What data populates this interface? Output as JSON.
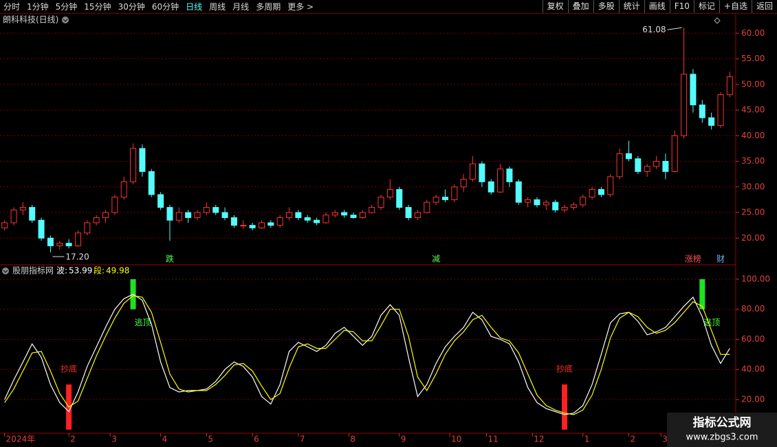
{
  "toolbar": {
    "periods": [
      "分时",
      "1分钟",
      "5分钟",
      "15分钟",
      "30分钟",
      "60分钟",
      "日线",
      "周线",
      "月线",
      "多周期",
      "更多 >"
    ],
    "active": 6,
    "buttons": [
      "复权",
      "叠加",
      "多股",
      "统计",
      "画线",
      "F10",
      "标记",
      "+自选",
      "返回"
    ]
  },
  "chart_data": [
    {
      "type": "candlestick",
      "title": "朗科科技(日线)",
      "up_color": "#ff3232",
      "down_color": "#54fcfc",
      "grid": true,
      "xlim": [
        -0.5,
        79.5
      ],
      "ylim": [
        14.8,
        63.8
      ],
      "yticks": [
        {
          "value": 20,
          "label": "20.00"
        },
        {
          "value": 25,
          "label": "25.00"
        },
        {
          "value": 30,
          "label": "30.00"
        },
        {
          "value": 35,
          "label": "35.00"
        },
        {
          "value": 40,
          "label": "40.00"
        },
        {
          "value": 45,
          "label": "45.00"
        },
        {
          "value": 50,
          "label": "50.00"
        },
        {
          "value": 55,
          "label": "55.00"
        },
        {
          "value": 60,
          "label": "60.00"
        }
      ],
      "open": [
        22.0,
        23.0,
        25.5,
        26.0,
        23.5,
        20.0,
        18.5,
        19.0,
        18.5,
        21.0,
        23.0,
        24.0,
        25.0,
        28.0,
        31.0,
        37.5,
        33.0,
        28.5,
        26.0,
        23.5,
        25.0,
        24.0,
        25.0,
        26.0,
        25.0,
        24.0,
        22.5,
        22.5,
        22.0,
        23.0,
        22.5,
        24.0,
        25.0,
        24.0,
        23.5,
        23.0,
        24.5,
        25.0,
        24.5,
        24.0,
        25.0,
        26.0,
        28.0,
        29.5,
        26.0,
        24.0,
        25.0,
        27.0,
        28.0,
        27.5,
        30.0,
        31.5,
        34.5,
        31.0,
        29.0,
        33.5,
        31.0,
        27.0,
        27.5,
        26.5,
        27.0,
        25.5,
        26.0,
        26.5,
        28.0,
        29.5,
        28.5,
        32.0,
        36.5,
        35.5,
        33.0,
        34.0,
        35.0,
        33.0,
        40.0,
        52.0,
        46.0,
        43.5,
        42.0,
        48.0
      ],
      "high": [
        23.5,
        26.0,
        27.0,
        26.5,
        24.0,
        20.5,
        19.5,
        19.8,
        21.5,
        23.5,
        24.5,
        25.5,
        28.5,
        32.0,
        38.5,
        38.3,
        33.5,
        29.0,
        26.5,
        26.0,
        25.5,
        25.5,
        27.0,
        26.5,
        26.0,
        24.5,
        23.5,
        23.0,
        23.5,
        23.5,
        24.5,
        26.0,
        25.5,
        24.5,
        24.0,
        25.0,
        25.5,
        25.5,
        25.0,
        25.5,
        26.5,
        28.5,
        31.5,
        30.0,
        26.5,
        25.5,
        27.5,
        28.5,
        29.5,
        30.5,
        32.5,
        36.0,
        35.0,
        31.5,
        34.5,
        34.0,
        31.5,
        28.0,
        28.0,
        27.5,
        27.5,
        26.5,
        27.0,
        28.5,
        30.0,
        30.0,
        32.5,
        37.5,
        39.0,
        36.0,
        34.5,
        36.0,
        36.5,
        41.0,
        61.08,
        53.0,
        47.0,
        44.5,
        48.5,
        52.5
      ],
      "low": [
        21.5,
        22.5,
        24.5,
        23.0,
        19.5,
        17.2,
        17.8,
        18.0,
        18.3,
        20.5,
        22.5,
        23.0,
        24.5,
        27.5,
        30.5,
        32.0,
        28.0,
        25.5,
        19.5,
        23.0,
        23.0,
        23.5,
        24.5,
        24.5,
        23.5,
        22.0,
        21.8,
        21.5,
        21.8,
        22.0,
        22.0,
        23.5,
        23.5,
        23.0,
        22.5,
        22.8,
        24.0,
        24.0,
        23.8,
        23.8,
        24.8,
        25.5,
        27.5,
        25.5,
        23.5,
        23.5,
        24.8,
        26.5,
        27.0,
        27.0,
        29.0,
        31.0,
        30.0,
        28.5,
        28.8,
        30.0,
        26.5,
        26.0,
        26.0,
        25.5,
        25.0,
        25.0,
        25.5,
        26.0,
        27.5,
        28.0,
        28.0,
        31.5,
        35.0,
        32.5,
        32.0,
        33.5,
        31.5,
        32.8,
        39.5,
        44.5,
        42.5,
        41.2,
        41.5,
        47.5
      ],
      "close": [
        23.0,
        25.5,
        26.0,
        23.5,
        20.0,
        18.5,
        19.0,
        18.5,
        21.0,
        23.0,
        24.0,
        25.0,
        28.0,
        31.0,
        37.5,
        33.0,
        28.5,
        26.0,
        23.5,
        25.0,
        24.0,
        25.0,
        26.0,
        25.0,
        24.0,
        22.5,
        22.5,
        22.0,
        23.0,
        22.5,
        24.0,
        25.0,
        24.0,
        23.5,
        23.0,
        24.5,
        25.0,
        24.5,
        24.0,
        25.0,
        26.0,
        28.0,
        29.5,
        26.0,
        24.0,
        25.0,
        27.0,
        28.0,
        27.5,
        30.0,
        31.5,
        34.5,
        31.0,
        29.0,
        33.5,
        31.0,
        27.0,
        27.5,
        26.5,
        27.0,
        25.5,
        26.0,
        26.5,
        28.0,
        29.5,
        28.5,
        32.0,
        36.5,
        35.5,
        33.0,
        34.0,
        35.0,
        33.0,
        40.0,
        52.0,
        46.0,
        43.5,
        42.0,
        48.0,
        51.5
      ],
      "annotations": [
        {
          "text": "61.08",
          "index": 74,
          "value": 61.08,
          "side": "left"
        },
        {
          "text": "17.20",
          "index": 5,
          "value": 17.2,
          "side": "right"
        }
      ],
      "events": [
        {
          "label": "跌",
          "index": 18,
          "color": "#54fc54"
        },
        {
          "label": "减",
          "index": 47,
          "color": "#54fc54"
        },
        {
          "label": "涨榜",
          "index": 75,
          "color": "#ff5050"
        },
        {
          "label": "财",
          "index": 78,
          "color": "#6ab4ff"
        }
      ]
    },
    {
      "type": "line",
      "title": "股朋指标网",
      "grid": true,
      "xlim": [
        -0.5,
        79.5
      ],
      "ylim": [
        -2.4,
        108.2
      ],
      "yticks": [
        {
          "value": 20,
          "label": "20.00"
        },
        {
          "value": 40,
          "label": "40.00"
        },
        {
          "value": 60,
          "label": "60.00"
        },
        {
          "value": 80,
          "label": "80.00"
        },
        {
          "value": 100,
          "label": "100.00"
        }
      ],
      "xticks": [
        {
          "value": 0,
          "label": "2024年"
        },
        {
          "value": 7,
          "label": "2"
        },
        {
          "value": 11.5,
          "label": "3"
        },
        {
          "value": 17,
          "label": "4"
        },
        {
          "value": 22,
          "label": "5"
        },
        {
          "value": 27,
          "label": "6"
        },
        {
          "value": 32,
          "label": "7"
        },
        {
          "value": 37.5,
          "label": "8"
        },
        {
          "value": 43,
          "label": "9"
        },
        {
          "value": 48.5,
          "label": "10"
        },
        {
          "value": 52.5,
          "label": "11"
        },
        {
          "value": 57.5,
          "label": "12"
        },
        {
          "value": 63,
          "label": "1"
        },
        {
          "value": 68,
          "label": "2"
        },
        {
          "value": 71.5,
          "label": "3"
        }
      ],
      "series": [
        {
          "name": "波:",
          "color": "#ffffff",
          "values": [
            20,
            33,
            45,
            57,
            48,
            30,
            18,
            12,
            25,
            42,
            55,
            68,
            80,
            87,
            90,
            86,
            70,
            45,
            28,
            25,
            26,
            26,
            27,
            32,
            40,
            45,
            42,
            35,
            22,
            17,
            30,
            52,
            58,
            55,
            52,
            56,
            64,
            68,
            62,
            56,
            62,
            76,
            83,
            76,
            48,
            22,
            30,
            44,
            55,
            62,
            68,
            78,
            73,
            62,
            60,
            57,
            45,
            28,
            18,
            14,
            12,
            10,
            11,
            16,
            30,
            50,
            71,
            77,
            78,
            72,
            63,
            65,
            68,
            75,
            82,
            88,
            75,
            56,
            44,
            53.99
          ]
        },
        {
          "name": "段:",
          "color": "#ffff00",
          "values": [
            18,
            27,
            39,
            51,
            52,
            39,
            24,
            15,
            19,
            34,
            49,
            62,
            74,
            84,
            89,
            88,
            78,
            58,
            37,
            27,
            25,
            26,
            26,
            30,
            36,
            43,
            44,
            39,
            29,
            20,
            24,
            41,
            55,
            57,
            54,
            54,
            60,
            66,
            65,
            59,
            59,
            69,
            80,
            80,
            62,
            35,
            26,
            37,
            50,
            59,
            65,
            73,
            76,
            68,
            61,
            59,
            51,
            37,
            23,
            16,
            13,
            11,
            10,
            13,
            23,
            40,
            61,
            74,
            78,
            75,
            68,
            64,
            66,
            71,
            78,
            85,
            82,
            66,
            50,
            49.98
          ]
        }
      ],
      "signals": [
        {
          "label": "抄底",
          "index": 7,
          "from": 0,
          "to": 30,
          "color": "#ff2020",
          "label_color": "#ff3030",
          "place": "above"
        },
        {
          "label": "逃顶",
          "index": 14,
          "from": 80,
          "to": 100,
          "color": "#20e020",
          "label_color": "#40ff40",
          "place": "below"
        },
        {
          "label": "抄底",
          "index": 61,
          "from": 0,
          "to": 30,
          "color": "#ff2020",
          "label_color": "#ff3030",
          "place": "above"
        },
        {
          "label": "逃顶",
          "index": 76,
          "from": 80,
          "to": 100,
          "color": "#20e020",
          "label_color": "#40ff40",
          "place": "below"
        }
      ]
    }
  ],
  "watermark": {
    "title": "指标公式网",
    "url": "www.zbgs3.com"
  }
}
